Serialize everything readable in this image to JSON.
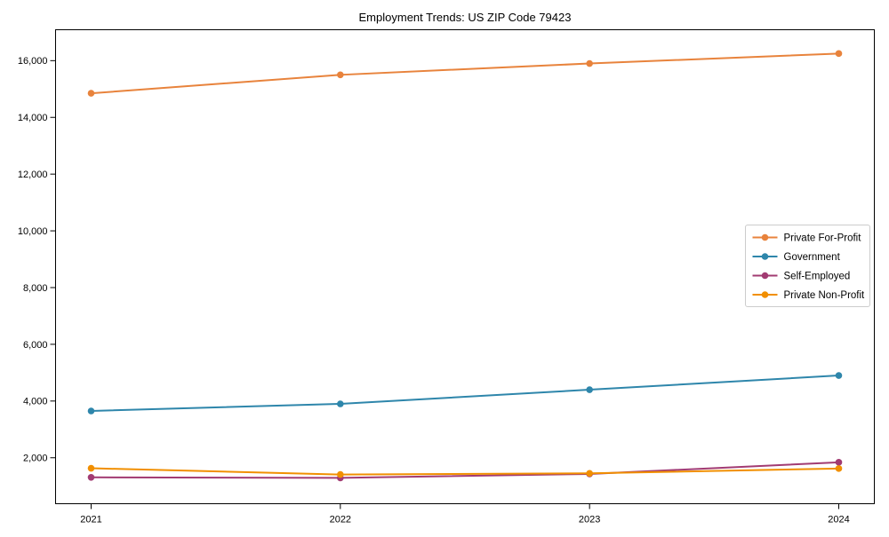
{
  "chart_data": {
    "type": "line",
    "title": "Employment Trends: US ZIP Code 79423",
    "x": [
      "2021",
      "2022",
      "2023",
      "2024"
    ],
    "xtick_labels": [
      "2021",
      "2022",
      "2023",
      "2024"
    ],
    "series": [
      {
        "name": "Private For-Profit",
        "color": "#E8833C",
        "values": [
          14850,
          15500,
          15900,
          16250
        ]
      },
      {
        "name": "Government",
        "color": "#2E86AB",
        "values": [
          3650,
          3900,
          4400,
          4900
        ]
      },
      {
        "name": "Self-Employed",
        "color": "#A23B72",
        "values": [
          1310,
          1290,
          1430,
          1840
        ]
      },
      {
        "name": "Private Non-Profit",
        "color": "#F18F01",
        "values": [
          1630,
          1410,
          1450,
          1620
        ]
      }
    ],
    "ylim": [
      380,
      17090
    ],
    "yticks": [
      2000,
      4000,
      6000,
      8000,
      10000,
      12000,
      14000,
      16000
    ],
    "ytick_labels": [
      "2,000",
      "4,000",
      "6,000",
      "8,000",
      "10,000",
      "12,000",
      "14,000",
      "16,000"
    ],
    "grid": false,
    "marker": "circle",
    "legend_position": "center-right",
    "frame_color": "#000000",
    "legend_border_color": "#cccccc",
    "legend_background": "#ffffff"
  }
}
